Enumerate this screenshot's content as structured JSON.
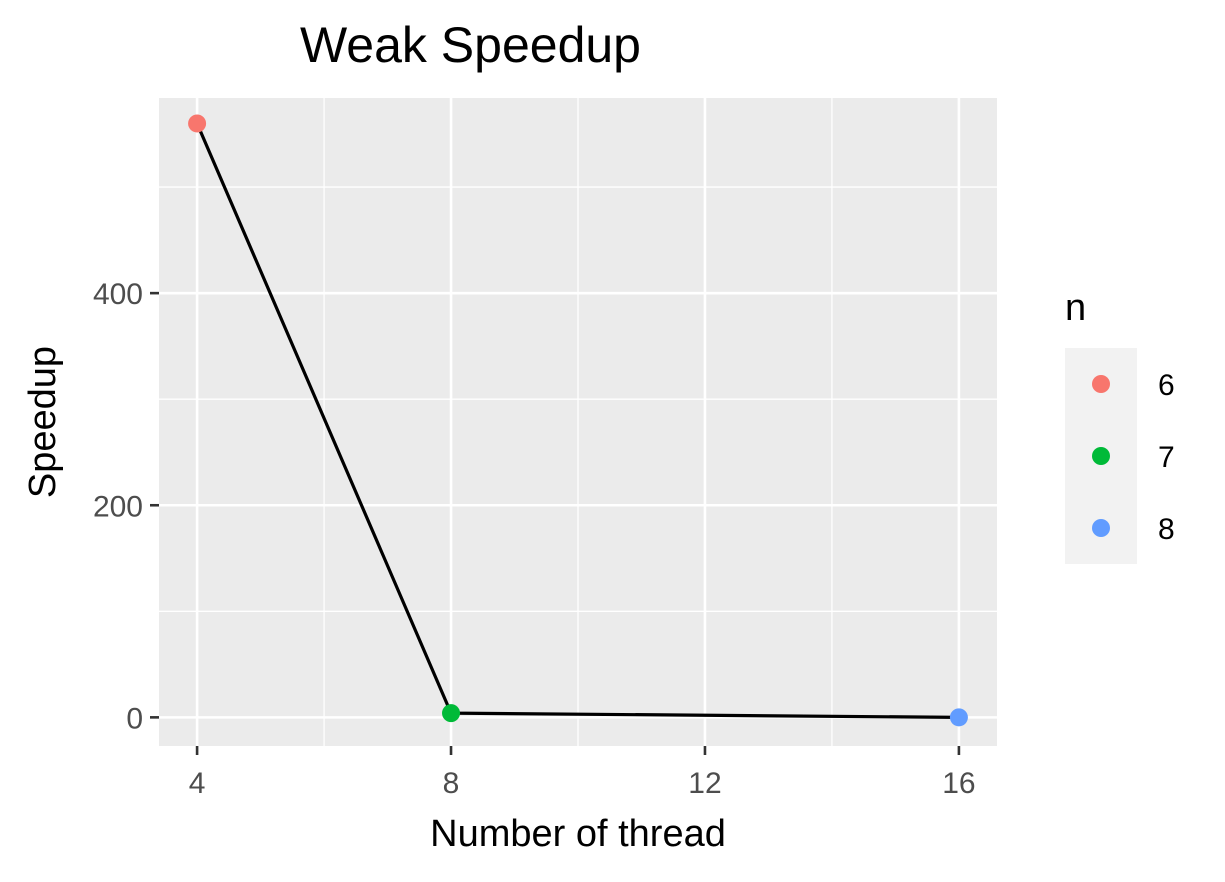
{
  "chart_data": {
    "type": "line",
    "title": "Weak Speedup",
    "xlabel": "Number of thread",
    "ylabel": "Speedup",
    "x": [
      4,
      8,
      16
    ],
    "values": [
      560,
      4,
      0
    ],
    "point_groups": [
      "6",
      "7",
      "8"
    ],
    "xlim": [
      3.4,
      16.6
    ],
    "ylim": [
      -27,
      584
    ],
    "x_ticks": [
      "4",
      "8",
      "12",
      "16"
    ],
    "x_tick_values": [
      4,
      8,
      12,
      16
    ],
    "y_ticks": [
      "0",
      "200",
      "400"
    ],
    "y_tick_values": [
      0,
      200,
      400
    ],
    "grid": true,
    "legend": {
      "title": "n",
      "position": "right",
      "entries": [
        {
          "label": "6",
          "color": "#F8766D"
        },
        {
          "label": "7",
          "color": "#00BA38"
        },
        {
          "label": "8",
          "color": "#619CFF"
        }
      ]
    },
    "colors": {
      "panel": "#EBEBEB",
      "grid": "#FFFFFF",
      "line": "#000000",
      "legend_key_bg": "#F2F2F2"
    }
  }
}
